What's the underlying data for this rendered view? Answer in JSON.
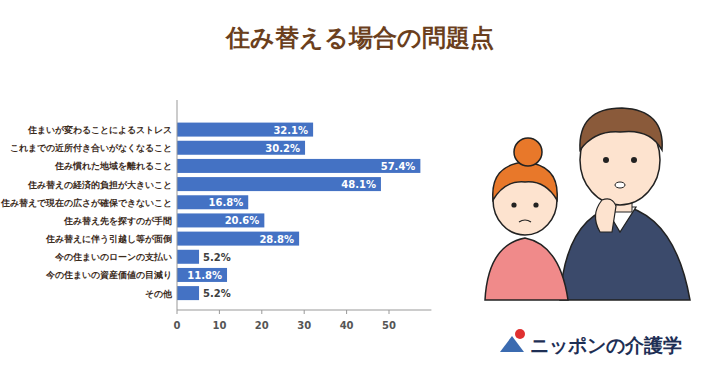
{
  "chart_data": {
    "type": "bar",
    "orientation": "horizontal",
    "title": "住み替える場合の問題点",
    "categories": [
      "住まいが変わることによるストレス",
      "これまでの近所付き合いがなくなること",
      "住み慣れた地域を離れること",
      "住み替えの経済的負担が大きいこと",
      "住み替えで現在の広さが確保できないこと",
      "住み替え先を探すのが手間",
      "住み替えに伴う引越し等が面倒",
      "今の住まいのローンの支払い",
      "今の住まいの資産価値の目減り",
      "その他"
    ],
    "values": [
      32.1,
      30.2,
      57.4,
      48.1,
      16.8,
      20.6,
      28.8,
      5.2,
      11.8,
      5.2
    ],
    "value_labels": [
      "32.1%",
      "30.2%",
      "57.4%",
      "48.1%",
      "16.8%",
      "20.6%",
      "28.8%",
      "5.2%",
      "11.8%",
      "5.2%"
    ],
    "color": "#4472c4",
    "xlim": [
      0,
      60
    ],
    "xticks": [
      0,
      10,
      20,
      30,
      40,
      50
    ],
    "grid": false,
    "data_labels": true
  },
  "logo": {
    "text": "ニッポンの介護学"
  }
}
